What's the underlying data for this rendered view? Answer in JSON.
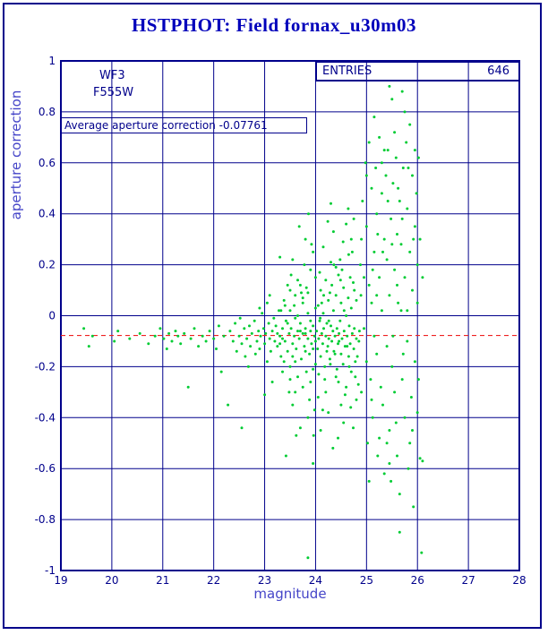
{
  "page": {
    "title": "HSTPHOT: Field fornax_u30m03"
  },
  "stats": {
    "entries_label": "ENTRIES",
    "entries_value": "646"
  },
  "annotations": {
    "camera": "WF3",
    "filter": "F555W",
    "average_text": "Average aperture correction -0.07761"
  },
  "chart_data": {
    "type": "scatter",
    "title": "HSTPHOT: Field fornax_u30m03",
    "xlabel": "magnitude",
    "ylabel": "aperture correction",
    "xlim": [
      19,
      28
    ],
    "ylim": [
      -1,
      1
    ],
    "x_ticks": [
      19,
      20,
      21,
      22,
      23,
      24,
      25,
      26,
      27,
      28
    ],
    "y_ticks": [
      1,
      0.8,
      0.6,
      0.4,
      0.2,
      0,
      -0.2,
      -0.4,
      -0.6,
      -0.8,
      -1
    ],
    "grid": true,
    "grid_color": "#00008b",
    "point_color": "#00cc33",
    "entries": 646,
    "average_line": {
      "value": -0.07761,
      "color": "#ee2222",
      "style": "dashed"
    },
    "legend": {
      "label": "ENTRIES",
      "value": 646,
      "position": "top-right"
    },
    "points": [
      [
        19.45,
        -0.05
      ],
      [
        19.55,
        -0.12
      ],
      [
        19.62,
        -0.08
      ],
      [
        20.05,
        -0.1
      ],
      [
        20.12,
        -0.06
      ],
      [
        20.35,
        -0.09
      ],
      [
        20.55,
        -0.07
      ],
      [
        20.72,
        -0.11
      ],
      [
        20.85,
        -0.08
      ],
      [
        20.95,
        -0.05
      ],
      [
        21.02,
        -0.09
      ],
      [
        21.08,
        -0.13
      ],
      [
        21.12,
        -0.07
      ],
      [
        21.18,
        -0.1
      ],
      [
        21.25,
        -0.06
      ],
      [
        21.3,
        -0.08
      ],
      [
        21.35,
        -0.11
      ],
      [
        21.42,
        -0.07
      ],
      [
        21.5,
        -0.28
      ],
      [
        21.55,
        -0.09
      ],
      [
        21.62,
        -0.05
      ],
      [
        21.7,
        -0.12
      ],
      [
        21.78,
        -0.08
      ],
      [
        21.85,
        -0.1
      ],
      [
        21.92,
        -0.06
      ],
      [
        22.0,
        -0.09
      ],
      [
        22.05,
        -0.13
      ],
      [
        22.1,
        -0.04
      ],
      [
        22.15,
        -0.22
      ],
      [
        22.2,
        -0.08
      ],
      [
        22.28,
        -0.35
      ],
      [
        22.32,
        -0.06
      ],
      [
        22.38,
        -0.1
      ],
      [
        22.42,
        -0.03
      ],
      [
        22.45,
        -0.14
      ],
      [
        22.5,
        -0.08
      ],
      [
        22.52,
        -0.01
      ],
      [
        22.55,
        -0.11
      ],
      [
        22.55,
        -0.44
      ],
      [
        22.6,
        -0.05
      ],
      [
        22.62,
        -0.16
      ],
      [
        22.65,
        -0.09
      ],
      [
        22.7,
        -0.04
      ],
      [
        22.72,
        -0.12
      ],
      [
        22.75,
        -0.07
      ],
      [
        22.8,
        -0.02
      ],
      [
        22.82,
        -0.15
      ],
      [
        22.85,
        -0.1
      ],
      [
        22.88,
        -0.06
      ],
      [
        22.9,
        -0.13
      ],
      [
        22.9,
        0.03
      ],
      [
        22.92,
        -0.08
      ],
      [
        22.95,
        0.01
      ],
      [
        22.98,
        -0.05
      ],
      [
        23.0,
        -0.11
      ],
      [
        23.0,
        -0.31
      ],
      [
        23.02,
        -0.07
      ],
      [
        23.05,
        -0.18
      ],
      [
        23.05,
        0.05
      ],
      [
        23.08,
        -0.03
      ],
      [
        23.1,
        -0.09
      ],
      [
        23.1,
        0.08
      ],
      [
        23.12,
        -0.14
      ],
      [
        23.15,
        -0.06
      ],
      [
        23.15,
        -0.26
      ],
      [
        23.18,
        -0.01
      ],
      [
        23.2,
        -0.1
      ],
      [
        22.68,
        -0.2
      ],
      [
        23.22,
        -0.04
      ],
      [
        23.25,
        -0.12
      ],
      [
        23.28,
        0.02
      ],
      [
        23.3,
        -0.08
      ],
      [
        23.32,
        -0.16
      ],
      [
        23.35,
        -0.05
      ],
      [
        23.38,
        0.06
      ],
      [
        23.4,
        -0.1
      ],
      [
        23.42,
        -0.02
      ],
      [
        23.45,
        -0.14
      ],
      [
        23.48,
        -0.07
      ],
      [
        23.5,
        0.1
      ],
      [
        23.5,
        -0.2
      ],
      [
        23.52,
        -0.05
      ],
      [
        23.55,
        -0.11
      ],
      [
        23.55,
        0.22
      ],
      [
        23.58,
        -0.08
      ],
      [
        23.6,
        -0.01
      ],
      [
        23.6,
        -0.3
      ],
      [
        23.62,
        -0.13
      ],
      [
        23.65,
        -0.06
      ],
      [
        23.65,
        0.14
      ],
      [
        23.68,
        -0.09
      ],
      [
        23.7,
        -0.03
      ],
      [
        23.7,
        -0.44
      ],
      [
        23.72,
        -0.17
      ],
      [
        23.75,
        -0.07
      ],
      [
        23.75,
        0.05
      ],
      [
        23.78,
        -0.12
      ],
      [
        23.8,
        -0.05
      ],
      [
        23.8,
        0.3
      ],
      [
        23.82,
        -0.22
      ],
      [
        23.85,
        -0.09
      ],
      [
        23.85,
        0.01
      ],
      [
        23.88,
        -0.15
      ],
      [
        23.9,
        -0.06
      ],
      [
        23.9,
        0.18
      ],
      [
        23.92,
        -0.11
      ],
      [
        23.95,
        -0.04
      ],
      [
        23.95,
        -0.58
      ],
      [
        23.98,
        -0.08
      ],
      [
        24.0,
        0.03
      ],
      [
        24.0,
        -0.19
      ],
      [
        23.3,
        0.23
      ],
      [
        23.45,
        0.12
      ],
      [
        23.55,
        -0.35
      ],
      [
        23.75,
        -0.28
      ],
      [
        23.85,
        -0.4
      ],
      [
        23.65,
        -0.24
      ],
      [
        23.95,
        0.25
      ],
      [
        23.35,
        -0.22
      ],
      [
        23.5,
        0.02
      ],
      [
        23.6,
        0.08
      ],
      [
        23.7,
        0.12
      ],
      [
        23.8,
        -0.14
      ],
      [
        23.9,
        -0.26
      ],
      [
        24.0,
        -0.1
      ],
      [
        23.25,
        -0.07
      ],
      [
        23.4,
        0.04
      ],
      [
        23.55,
        -0.16
      ],
      [
        23.7,
        -0.06
      ],
      [
        23.85,
        0.09
      ],
      [
        23.95,
        -0.13
      ],
      [
        23.3,
        -0.11
      ],
      [
        23.45,
        -0.03
      ],
      [
        23.6,
        -0.18
      ],
      [
        23.75,
        0.07
      ],
      [
        23.9,
        -0.02
      ],
      [
        24.0,
        0.15
      ],
      [
        23.35,
        -0.09
      ],
      [
        23.5,
        -0.25
      ],
      [
        23.65,
        0.0
      ],
      [
        23.8,
        -0.07
      ],
      [
        23.95,
        -0.21
      ],
      [
        23.42,
        -0.55
      ],
      [
        23.68,
        0.35
      ],
      [
        23.88,
        -0.33
      ],
      [
        23.52,
        0.16
      ],
      [
        23.78,
        0.2
      ],
      [
        23.98,
        -0.37
      ],
      [
        23.62,
        -0.47
      ],
      [
        23.32,
        0.02
      ],
      [
        23.72,
        0.09
      ],
      [
        23.92,
        0.28
      ],
      [
        23.48,
        -0.3
      ],
      [
        23.58,
        0.04
      ],
      [
        23.82,
        0.11
      ],
      [
        23.96,
        -0.47
      ],
      [
        23.38,
        -0.18
      ],
      [
        23.86,
        0.4
      ],
      [
        23.85,
        -0.95
      ],
      [
        24.02,
        -0.06
      ],
      [
        24.04,
        -0.13
      ],
      [
        24.05,
        0.04
      ],
      [
        24.06,
        -0.09
      ],
      [
        24.08,
        -0.02
      ],
      [
        24.1,
        -0.16
      ],
      [
        24.1,
        0.1
      ],
      [
        24.12,
        -0.07
      ],
      [
        24.14,
        -0.11
      ],
      [
        24.15,
        0.01
      ],
      [
        24.16,
        -0.05
      ],
      [
        24.18,
        -0.2
      ],
      [
        24.2,
        -0.08
      ],
      [
        24.2,
        0.14
      ],
      [
        24.22,
        -0.03
      ],
      [
        24.24,
        -0.12
      ],
      [
        24.25,
        0.06
      ],
      [
        24.26,
        -0.09
      ],
      [
        24.28,
        -0.17
      ],
      [
        24.3,
        -0.04
      ],
      [
        24.3,
        0.21
      ],
      [
        24.32,
        -0.1
      ],
      [
        24.34,
        -0.06
      ],
      [
        24.35,
        0.02
      ],
      [
        24.36,
        -0.14
      ],
      [
        24.38,
        -0.08
      ],
      [
        24.4,
        0.08
      ],
      [
        24.4,
        -0.24
      ],
      [
        24.42,
        -0.05
      ],
      [
        24.44,
        -0.11
      ],
      [
        24.45,
        0.16
      ],
      [
        24.46,
        -0.07
      ],
      [
        24.48,
        -0.02
      ],
      [
        24.5,
        -0.15
      ],
      [
        24.5,
        0.05
      ],
      [
        24.52,
        -0.09
      ],
      [
        24.54,
        -0.19
      ],
      [
        24.55,
        0.11
      ],
      [
        24.56,
        -0.06
      ],
      [
        24.58,
        -0.12
      ],
      [
        24.6,
        0.0
      ],
      [
        24.6,
        -0.28
      ],
      [
        24.62,
        -0.08
      ],
      [
        24.64,
        0.07
      ],
      [
        24.65,
        -0.16
      ],
      [
        24.66,
        -0.04
      ],
      [
        24.68,
        -0.11
      ],
      [
        24.7,
        0.03
      ],
      [
        24.7,
        -0.22
      ],
      [
        24.72,
        -0.07
      ],
      [
        24.74,
        0.13
      ],
      [
        24.75,
        -0.13
      ],
      [
        24.76,
        -0.05
      ],
      [
        24.78,
        -0.18
      ],
      [
        24.8,
        0.06
      ],
      [
        24.8,
        -0.09
      ],
      [
        24.05,
        -0.32
      ],
      [
        24.15,
        0.27
      ],
      [
        24.25,
        -0.38
      ],
      [
        24.35,
        0.33
      ],
      [
        24.45,
        -0.26
      ],
      [
        24.55,
        -0.42
      ],
      [
        24.65,
        0.24
      ],
      [
        24.75,
        0.38
      ],
      [
        24.1,
        -0.45
      ],
      [
        24.3,
        0.44
      ],
      [
        24.5,
        -0.35
      ],
      [
        24.7,
        0.3
      ],
      [
        24.2,
        -0.3
      ],
      [
        24.4,
        0.19
      ],
      [
        24.6,
        0.36
      ],
      [
        24.8,
        -0.33
      ],
      [
        24.08,
        0.17
      ],
      [
        24.18,
        -0.25
      ],
      [
        24.28,
        0.09
      ],
      [
        24.38,
        -0.15
      ],
      [
        24.48,
        0.22
      ],
      [
        24.58,
        -0.31
      ],
      [
        24.68,
        0.15
      ],
      [
        24.78,
        -0.24
      ],
      [
        24.12,
        0.05
      ],
      [
        24.22,
        -0.14
      ],
      [
        24.32,
        0.12
      ],
      [
        24.42,
        -0.21
      ],
      [
        24.52,
        0.18
      ],
      [
        24.62,
        -0.12
      ],
      [
        24.72,
        0.25
      ],
      [
        24.82,
        -0.16
      ],
      [
        24.06,
        -0.23
      ],
      [
        24.16,
        0.08
      ],
      [
        24.26,
        -0.02
      ],
      [
        24.36,
        0.2
      ],
      [
        24.46,
        -0.1
      ],
      [
        24.56,
        0.02
      ],
      [
        24.66,
        -0.2
      ],
      [
        24.76,
        0.1
      ],
      [
        24.86,
        -0.06
      ],
      [
        24.14,
        -0.37
      ],
      [
        24.34,
        -0.52
      ],
      [
        24.54,
        0.29
      ],
      [
        24.74,
        -0.44
      ],
      [
        24.24,
        0.37
      ],
      [
        24.44,
        -0.48
      ],
      [
        24.64,
        0.42
      ],
      [
        24.84,
        -0.27
      ],
      [
        24.09,
        -0.01
      ],
      [
        24.29,
        -0.19
      ],
      [
        24.49,
        0.14
      ],
      [
        24.69,
        -0.36
      ],
      [
        24.89,
        0.08
      ],
      [
        24.85,
        -0.1
      ],
      [
        24.88,
        0.2
      ],
      [
        24.9,
        -0.3
      ],
      [
        24.92,
        0.45
      ],
      [
        24.95,
        -0.05
      ],
      [
        24.98,
        0.6
      ],
      [
        25.0,
        -0.18
      ],
      [
        25.0,
        0.35
      ],
      [
        25.02,
        -0.5
      ],
      [
        25.05,
        0.12
      ],
      [
        25.05,
        0.68
      ],
      [
        25.08,
        -0.25
      ],
      [
        25.1,
        0.05
      ],
      [
        25.1,
        0.5
      ],
      [
        25.12,
        -0.4
      ],
      [
        25.15,
        0.25
      ],
      [
        25.15,
        -0.08
      ],
      [
        25.18,
        0.58
      ],
      [
        25.2,
        -0.15
      ],
      [
        25.2,
        0.4
      ],
      [
        25.22,
        -0.55
      ],
      [
        25.25,
        0.15
      ],
      [
        25.25,
        0.7
      ],
      [
        25.28,
        -0.28
      ],
      [
        25.3,
        0.02
      ],
      [
        25.3,
        0.48
      ],
      [
        25.32,
        -0.35
      ],
      [
        25.35,
        0.3
      ],
      [
        25.35,
        -0.62
      ],
      [
        25.38,
        0.55
      ],
      [
        25.4,
        -0.12
      ],
      [
        25.4,
        0.22
      ],
      [
        25.42,
        0.65
      ],
      [
        25.45,
        -0.45
      ],
      [
        25.45,
        0.08
      ],
      [
        25.48,
        0.38
      ],
      [
        25.5,
        -0.2
      ],
      [
        25.5,
        0.85
      ],
      [
        25.52,
        0.52
      ],
      [
        25.55,
        -0.3
      ],
      [
        25.55,
        0.18
      ],
      [
        25.58,
        0.62
      ],
      [
        25.6,
        -0.55
      ],
      [
        25.6,
        0.32
      ],
      [
        25.62,
        0.05
      ],
      [
        25.65,
        -0.7
      ],
      [
        25.65,
        0.45
      ],
      [
        25.68,
        0.28
      ],
      [
        25.7,
        -0.25
      ],
      [
        25.7,
        0.88
      ],
      [
        25.72,
        0.58
      ],
      [
        25.75,
        -0.4
      ],
      [
        25.75,
        0.15
      ],
      [
        25.78,
        0.68
      ],
      [
        25.8,
        -0.1
      ],
      [
        25.8,
        0.42
      ],
      [
        25.82,
        -0.6
      ],
      [
        25.85,
        0.25
      ],
      [
        25.85,
        0.75
      ],
      [
        25.88,
        -0.32
      ],
      [
        25.9,
        0.1
      ],
      [
        25.9,
        0.55
      ],
      [
        25.92,
        -0.75
      ],
      [
        25.95,
        0.35
      ],
      [
        25.95,
        -0.18
      ],
      [
        25.98,
        0.48
      ],
      [
        26.0,
        -0.38
      ],
      [
        26.0,
        0.2
      ],
      [
        26.02,
        0.62
      ],
      [
        26.05,
        -0.56
      ],
      [
        26.05,
        0.3
      ],
      [
        26.08,
        -0.93
      ],
      [
        26.1,
        0.15
      ],
      [
        25.05,
        -0.65
      ],
      [
        25.15,
        0.78
      ],
      [
        25.25,
        -0.48
      ],
      [
        25.35,
        0.65
      ],
      [
        25.45,
        -0.58
      ],
      [
        25.55,
        0.72
      ],
      [
        25.65,
        -0.85
      ],
      [
        25.75,
        0.8
      ],
      [
        25.85,
        -0.5
      ],
      [
        25.95,
        0.65
      ],
      [
        24.9,
        0.3
      ],
      [
        25.0,
        0.55
      ],
      [
        25.1,
        -0.33
      ],
      [
        25.2,
        0.08
      ],
      [
        25.3,
        0.6
      ],
      [
        25.4,
        -0.5
      ],
      [
        25.5,
        0.28
      ],
      [
        25.6,
        0.12
      ],
      [
        25.7,
        0.38
      ],
      [
        25.8,
        0.02
      ],
      [
        25.9,
        -0.45
      ],
      [
        26.0,
        0.05
      ],
      [
        25.12,
        0.18
      ],
      [
        25.32,
        0.25
      ],
      [
        25.52,
        -0.08
      ],
      [
        25.72,
        -0.15
      ],
      [
        25.92,
        0.3
      ],
      [
        25.22,
        0.32
      ],
      [
        25.42,
        0.45
      ],
      [
        25.62,
        0.5
      ],
      [
        25.82,
        0.58
      ],
      [
        26.02,
        -0.25
      ],
      [
        24.95,
        0.15
      ],
      [
        25.45,
        0.9
      ],
      [
        25.58,
        -0.42
      ],
      [
        26.1,
        -0.57
      ],
      [
        25.48,
        -0.65
      ],
      [
        25.68,
        0.02
      ]
    ]
  }
}
